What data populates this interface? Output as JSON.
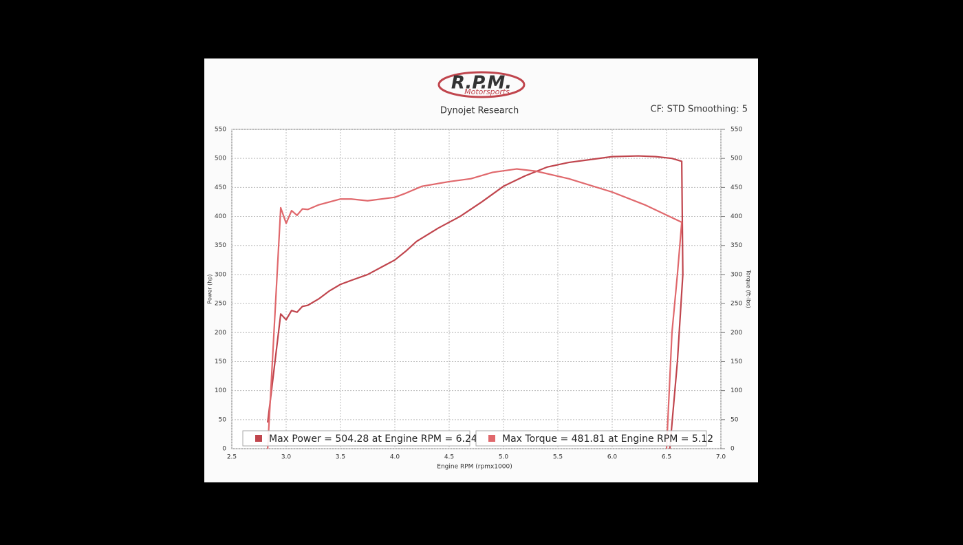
{
  "header": {
    "logo": "R.P.M.",
    "logo_script": "Motorsports"
  },
  "chart_data": {
    "type": "line",
    "title": "Dynojet Research",
    "subtitle": "CF: STD Smoothing: 5",
    "x_label": "Engine RPM (rpmx1000)",
    "y_label": "Power (hp)",
    "y2_label": "Torque (ft-lbs)",
    "xlim": [
      2.5,
      7.0
    ],
    "xticks": [
      2.5,
      {
        "value": 3,
        "label": "3.0"
      },
      3.5,
      {
        "value": 4,
        "label": "4.0"
      },
      4.5,
      {
        "value": 5,
        "label": "5.0"
      },
      5.5,
      {
        "value": 6,
        "label": "6.0"
      },
      6.5,
      {
        "value": 7,
        "label": "7.0"
      }
    ],
    "ylim": [
      0,
      550
    ],
    "yticks": [
      0,
      50,
      100,
      150,
      200,
      250,
      300,
      350,
      400,
      450,
      500,
      550
    ],
    "y2lim": [
      0,
      550
    ],
    "y2ticks": [
      0,
      50,
      100,
      150,
      200,
      250,
      300,
      350,
      400,
      450,
      500,
      550
    ],
    "grid": true,
    "series": [
      {
        "name": "Max Power = 504.28 at Engine RPM = 6.24",
        "color": "#c0454d",
        "x": [
          2.83,
          2.95,
          3.0,
          3.05,
          3.1,
          3.15,
          3.2,
          3.3,
          3.4,
          3.5,
          3.6,
          3.75,
          3.9,
          4.0,
          4.1,
          4.2,
          4.4,
          4.6,
          4.8,
          5.0,
          5.2,
          5.4,
          5.6,
          5.8,
          6.0,
          6.24,
          6.4,
          6.55,
          6.64,
          6.65,
          6.6,
          6.53
        ],
        "values": [
          45,
          232,
          222,
          238,
          235,
          245,
          247,
          258,
          272,
          283,
          290,
          300,
          315,
          325,
          340,
          357,
          380,
          400,
          425,
          452,
          470,
          485,
          493,
          498,
          503,
          504.28,
          503,
          500,
          495,
          300,
          150,
          0
        ]
      },
      {
        "name": "Max Torque = 481.81 at Engine RPM = 5.12",
        "color": "#e0686c",
        "x": [
          2.83,
          2.95,
          3.0,
          3.05,
          3.1,
          3.15,
          3.2,
          3.3,
          3.5,
          3.6,
          3.75,
          4.0,
          4.1,
          4.25,
          4.5,
          4.7,
          4.9,
          5.12,
          5.3,
          5.6,
          6.0,
          6.3,
          6.64,
          6.6,
          6.55,
          6.5
        ],
        "values": [
          0,
          415,
          388,
          410,
          402,
          413,
          412,
          420,
          430,
          430,
          427,
          433,
          440,
          452,
          460,
          465,
          476,
          481.81,
          478,
          465,
          442,
          420,
          390,
          300,
          200,
          0
        ],
        "axis": "y2"
      }
    ]
  }
}
